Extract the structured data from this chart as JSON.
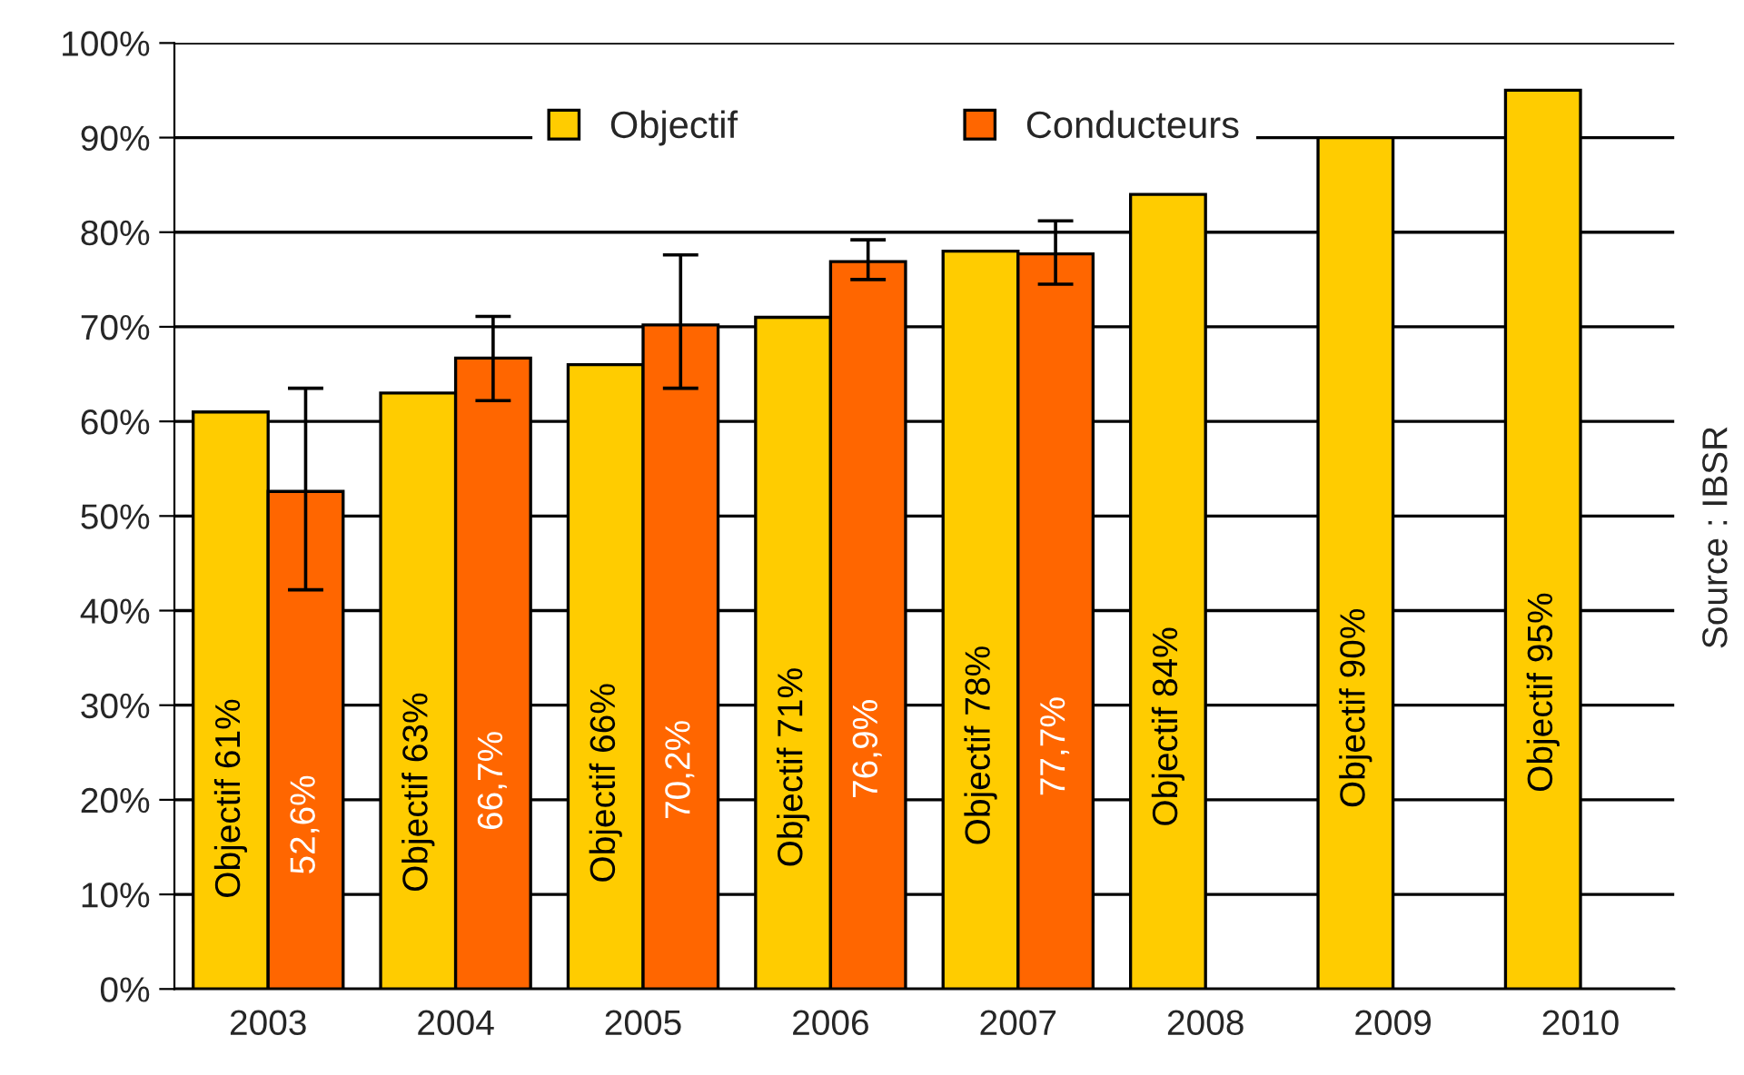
{
  "chart_data": {
    "type": "bar",
    "categories": [
      "2003",
      "2004",
      "2005",
      "2006",
      "2007",
      "2008",
      "2009",
      "2010"
    ],
    "series": [
      {
        "name": "Objectif",
        "color": "#ffcc00",
        "values": [
          61,
          63,
          66,
          71,
          78,
          84,
          90,
          95
        ],
        "value_labels": [
          "Objectif 61%",
          "Objectif 63%",
          "Objectif 66%",
          "Objectif 71%",
          "Objectif 78%",
          "Objectif 84%",
          "Objectif 90%",
          "Objectif 95%"
        ]
      },
      {
        "name": "Conducteurs",
        "color": "#ff6600",
        "values": [
          52.6,
          66.7,
          70.2,
          76.9,
          77.7,
          null,
          null,
          null
        ],
        "value_labels": [
          "52,6%",
          "66,7%",
          "70,2%",
          "76,9%",
          "77,7%",
          null,
          null,
          null
        ],
        "errors": [
          [
            42.2,
            63.5
          ],
          [
            62.2,
            71.1
          ],
          [
            63.5,
            77.6
          ],
          [
            75,
            79.2
          ],
          [
            74.5,
            81.2
          ],
          null,
          null,
          null
        ]
      }
    ],
    "ylim": [
      0,
      100
    ],
    "yticks": [
      {
        "value": 0,
        "label": "0%"
      },
      {
        "value": 10,
        "label": "10%"
      },
      {
        "value": 20,
        "label": "20%"
      },
      {
        "value": 30,
        "label": "30%"
      },
      {
        "value": 40,
        "label": "40%"
      },
      {
        "value": 50,
        "label": "50%"
      },
      {
        "value": 60,
        "label": "60%"
      },
      {
        "value": 70,
        "label": "70%"
      },
      {
        "value": 80,
        "label": "80%"
      },
      {
        "value": 90,
        "label": "90%"
      },
      {
        "value": 100,
        "label": "100%"
      }
    ],
    "grid": "y",
    "legend": "top",
    "annotations": [
      "Source : IBSR"
    ]
  }
}
